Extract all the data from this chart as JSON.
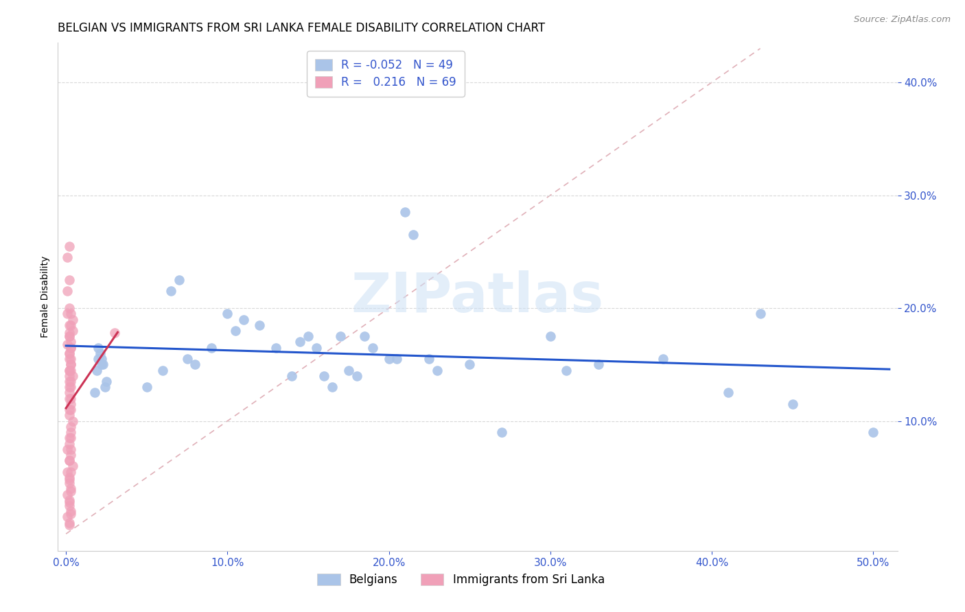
{
  "title": "BELGIAN VS IMMIGRANTS FROM SRI LANKA FEMALE DISABILITY CORRELATION CHART",
  "source": "Source: ZipAtlas.com",
  "ylabel": "Female Disability",
  "blue_color": "#aac4e8",
  "pink_color": "#f0a0b8",
  "blue_line_color": "#2255cc",
  "pink_line_color": "#cc3355",
  "diag_color": "#e0b0b8",
  "watermark_text": "ZIPatlas",
  "xlim": [
    -0.005,
    0.515
  ],
  "ylim": [
    -0.015,
    0.435
  ],
  "xticks": [
    0.0,
    0.1,
    0.2,
    0.3,
    0.4,
    0.5
  ],
  "yticks": [
    0.1,
    0.2,
    0.3,
    0.4
  ],
  "belgians_x": [
    0.021,
    0.022,
    0.019,
    0.023,
    0.02,
    0.024,
    0.018,
    0.025,
    0.022,
    0.02,
    0.05,
    0.06,
    0.065,
    0.07,
    0.075,
    0.08,
    0.09,
    0.1,
    0.105,
    0.11,
    0.12,
    0.13,
    0.14,
    0.145,
    0.15,
    0.155,
    0.16,
    0.165,
    0.17,
    0.175,
    0.18,
    0.185,
    0.19,
    0.2,
    0.205,
    0.21,
    0.215,
    0.225,
    0.23,
    0.25,
    0.27,
    0.3,
    0.31,
    0.33,
    0.37,
    0.41,
    0.43,
    0.45,
    0.5
  ],
  "belgians_y": [
    0.16,
    0.155,
    0.145,
    0.15,
    0.165,
    0.13,
    0.125,
    0.135,
    0.15,
    0.155,
    0.13,
    0.145,
    0.215,
    0.225,
    0.155,
    0.15,
    0.165,
    0.195,
    0.18,
    0.19,
    0.185,
    0.165,
    0.14,
    0.17,
    0.175,
    0.165,
    0.14,
    0.13,
    0.175,
    0.145,
    0.14,
    0.175,
    0.165,
    0.155,
    0.155,
    0.285,
    0.265,
    0.155,
    0.145,
    0.15,
    0.09,
    0.175,
    0.145,
    0.15,
    0.155,
    0.125,
    0.195,
    0.115,
    0.09
  ],
  "srilanka_x": [
    0.002,
    0.003,
    0.003,
    0.004,
    0.002,
    0.003,
    0.002,
    0.004,
    0.003,
    0.002,
    0.003,
    0.004,
    0.002,
    0.003,
    0.002,
    0.003,
    0.002,
    0.003,
    0.004,
    0.002,
    0.003,
    0.002,
    0.003,
    0.004,
    0.002,
    0.003,
    0.002,
    0.003,
    0.002,
    0.003,
    0.002,
    0.003,
    0.002,
    0.003,
    0.002,
    0.003,
    0.002,
    0.003,
    0.002,
    0.003,
    0.002,
    0.003,
    0.002,
    0.003,
    0.002,
    0.003,
    0.002,
    0.003,
    0.002,
    0.003,
    0.001,
    0.002,
    0.001,
    0.002,
    0.001,
    0.002,
    0.001,
    0.002,
    0.001,
    0.002,
    0.001,
    0.002,
    0.001,
    0.002,
    0.001,
    0.03,
    0.002,
    0.002,
    0.003
  ],
  "srilanka_y": [
    0.16,
    0.155,
    0.145,
    0.14,
    0.13,
    0.12,
    0.11,
    0.1,
    0.09,
    0.08,
    0.07,
    0.06,
    0.05,
    0.04,
    0.03,
    0.165,
    0.175,
    0.185,
    0.18,
    0.175,
    0.165,
    0.155,
    0.15,
    0.19,
    0.145,
    0.135,
    0.125,
    0.115,
    0.105,
    0.095,
    0.085,
    0.075,
    0.065,
    0.055,
    0.048,
    0.038,
    0.028,
    0.018,
    0.008,
    0.195,
    0.185,
    0.17,
    0.16,
    0.15,
    0.14,
    0.13,
    0.12,
    0.11,
    0.01,
    0.02,
    0.015,
    0.025,
    0.035,
    0.045,
    0.055,
    0.065,
    0.075,
    0.255,
    0.245,
    0.225,
    0.215,
    0.2,
    0.195,
    0.178,
    0.168,
    0.178,
    0.145,
    0.135,
    0.085
  ]
}
